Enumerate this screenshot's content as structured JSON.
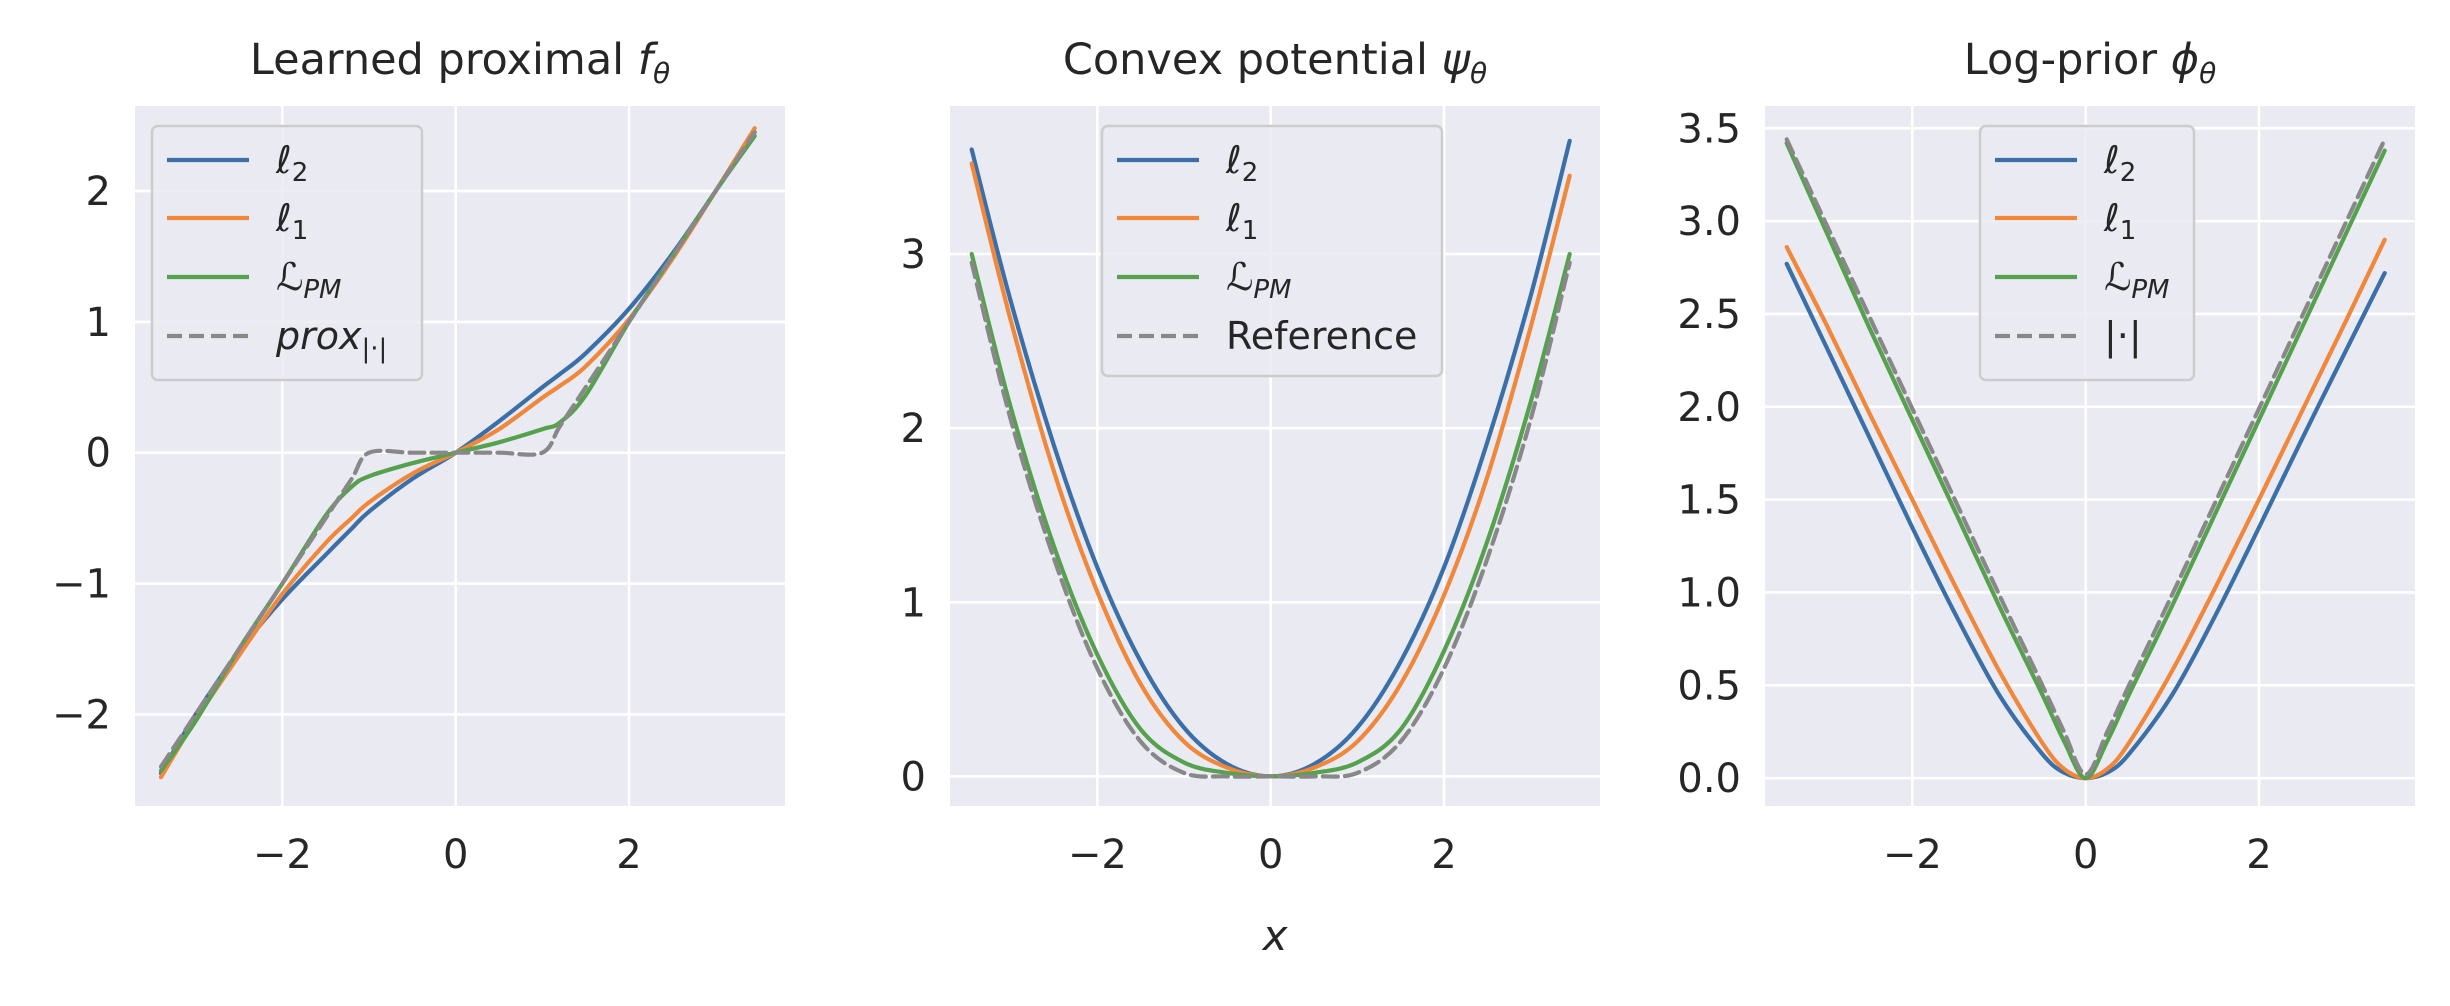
{
  "chart_data": [
    {
      "type": "line",
      "title": "Learned proximal fθ",
      "xlabel": "",
      "xlim": [
        -3.7,
        3.8
      ],
      "ylim": [
        -2.7,
        2.65
      ],
      "xticks": [
        -2,
        0,
        2
      ],
      "yticks": [
        -2,
        -1,
        0,
        1,
        2
      ],
      "x": [
        -3.4,
        -3.0,
        -2.5,
        -2.0,
        -1.5,
        -1.2,
        -1.0,
        -0.5,
        0.0,
        0.5,
        1.0,
        1.2,
        1.5,
        2.0,
        2.5,
        3.0,
        3.45
      ],
      "legend_position": "upper-left",
      "series": [
        {
          "name": "ℓ2",
          "color": "#3a6fa8",
          "dash": false,
          "values": [
            -2.45,
            -2.0,
            -1.52,
            -1.12,
            -0.78,
            -0.58,
            -0.45,
            -0.2,
            0.0,
            0.24,
            0.5,
            0.6,
            0.76,
            1.1,
            1.52,
            2.0,
            2.45
          ]
        },
        {
          "name": "ℓ1",
          "color": "#f0873a",
          "dash": false,
          "values": [
            -2.48,
            -2.04,
            -1.55,
            -1.08,
            -0.69,
            -0.5,
            -0.38,
            -0.16,
            0.0,
            0.18,
            0.42,
            0.51,
            0.66,
            1.02,
            1.48,
            2.0,
            2.48
          ]
        },
        {
          "name": "ℒPM",
          "color": "#55a14e",
          "dash": false,
          "values": [
            -2.43,
            -2.05,
            -1.5,
            -1.0,
            -0.48,
            -0.26,
            -0.18,
            -0.08,
            0.0,
            0.08,
            0.18,
            0.23,
            0.44,
            1.0,
            1.5,
            2.0,
            2.42
          ]
        },
        {
          "name": "prox|·|",
          "color": "#888888",
          "dash": true,
          "values": [
            -2.4,
            -2.0,
            -1.5,
            -1.0,
            -0.5,
            -0.2,
            0.0,
            0.0,
            0.0,
            0.0,
            0.0,
            0.2,
            0.5,
            1.0,
            1.5,
            2.0,
            2.45
          ]
        }
      ]
    },
    {
      "type": "line",
      "title": "Convex potential ψθ",
      "xlabel": "x",
      "xlim": [
        -3.7,
        3.8
      ],
      "ylim": [
        -0.17,
        3.85
      ],
      "xticks": [
        -2,
        0,
        2
      ],
      "yticks": [
        0,
        1,
        2,
        3
      ],
      "x": [
        -3.45,
        -3.0,
        -2.5,
        -2.0,
        -1.5,
        -1.0,
        -0.5,
        0.0,
        0.5,
        1.0,
        1.5,
        2.0,
        2.5,
        3.0,
        3.45
      ],
      "legend_position": "upper-center",
      "series": [
        {
          "name": "ℓ2",
          "color": "#3a6fa8",
          "dash": false,
          "values": [
            3.6,
            2.73,
            1.9,
            1.2,
            0.66,
            0.28,
            0.07,
            0.0,
            0.07,
            0.28,
            0.66,
            1.2,
            1.92,
            2.76,
            3.65
          ]
        },
        {
          "name": "ℓ1",
          "color": "#f0873a",
          "dash": false,
          "values": [
            3.52,
            2.62,
            1.75,
            1.06,
            0.53,
            0.2,
            0.05,
            0.0,
            0.05,
            0.2,
            0.53,
            1.04,
            1.72,
            2.58,
            3.45
          ]
        },
        {
          "name": "ℒPM",
          "color": "#55a14e",
          "dash": false,
          "values": [
            3.0,
            2.12,
            1.32,
            0.7,
            0.27,
            0.08,
            0.02,
            0.0,
            0.02,
            0.08,
            0.27,
            0.72,
            1.35,
            2.15,
            3.0
          ]
        },
        {
          "name": "Reference",
          "color": "#888888",
          "dash": true,
          "values": [
            2.95,
            2.05,
            1.25,
            0.62,
            0.2,
            0.02,
            0.0,
            0.0,
            0.0,
            0.02,
            0.2,
            0.62,
            1.25,
            2.05,
            2.95
          ]
        }
      ]
    },
    {
      "type": "line",
      "title": "Log-prior ϕθ",
      "xlabel": "",
      "xlim": [
        -3.7,
        3.8
      ],
      "ylim": [
        -0.15,
        3.62
      ],
      "xticks": [
        -2,
        0,
        2
      ],
      "yticks": [
        0.0,
        0.5,
        1.0,
        1.5,
        2.0,
        2.5,
        3.0,
        3.5
      ],
      "x": [
        -3.45,
        -3.0,
        -2.5,
        -2.0,
        -1.5,
        -1.0,
        -0.5,
        -0.25,
        0.0,
        0.25,
        0.5,
        1.0,
        1.5,
        2.0,
        2.5,
        3.0,
        3.45
      ],
      "legend_position": "upper-center",
      "series": [
        {
          "name": "ℓ2",
          "color": "#3a6fa8",
          "dash": false,
          "values": [
            2.77,
            2.33,
            1.84,
            1.35,
            0.88,
            0.45,
            0.13,
            0.03,
            0.0,
            0.03,
            0.13,
            0.45,
            0.88,
            1.35,
            1.83,
            2.3,
            2.72
          ]
        },
        {
          "name": "ℓ1",
          "color": "#f0873a",
          "dash": false,
          "values": [
            2.86,
            2.45,
            1.97,
            1.5,
            1.03,
            0.58,
            0.19,
            0.05,
            0.0,
            0.05,
            0.19,
            0.58,
            1.03,
            1.5,
            1.98,
            2.46,
            2.9
          ]
        },
        {
          "name": "ℒPM",
          "color": "#55a14e",
          "dash": false,
          "values": [
            3.42,
            2.95,
            2.43,
            1.93,
            1.43,
            0.93,
            0.45,
            0.2,
            0.0,
            0.2,
            0.45,
            0.93,
            1.43,
            1.93,
            2.43,
            2.93,
            3.38
          ]
        },
        {
          "name": "|·|",
          "color": "#888888",
          "dash": true,
          "values": [
            3.44,
            2.99,
            2.49,
            1.99,
            1.49,
            0.99,
            0.5,
            0.25,
            0.02,
            0.25,
            0.5,
            0.99,
            1.49,
            1.99,
            2.49,
            2.99,
            3.44
          ]
        }
      ]
    }
  ]
}
